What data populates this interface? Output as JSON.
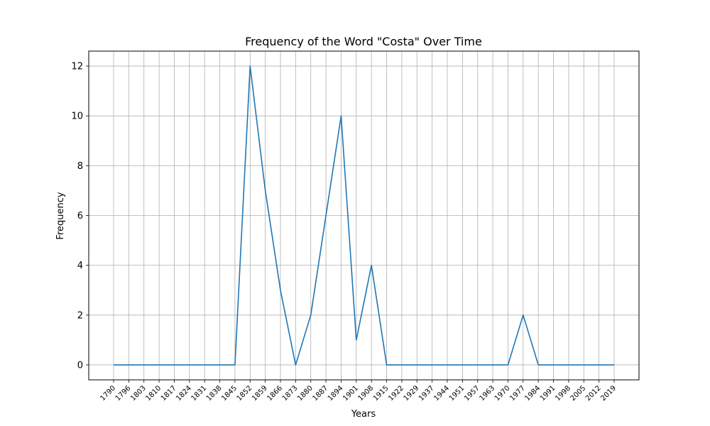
{
  "chart_data": {
    "type": "line",
    "title": "Frequency of the Word \"Costa\" Over Time",
    "xlabel": "Years",
    "ylabel": "Frequency",
    "x": [
      "1790",
      "1796",
      "1803",
      "1810",
      "1817",
      "1824",
      "1831",
      "1838",
      "1845",
      "1852",
      "1859",
      "1866",
      "1873",
      "1880",
      "1887",
      "1894",
      "1901",
      "1908",
      "1915",
      "1922",
      "1929",
      "1937",
      "1944",
      "1951",
      "1957",
      "1963",
      "1970",
      "1977",
      "1984",
      "1991",
      "1998",
      "2005",
      "2012",
      "2019"
    ],
    "series": [
      {
        "color": "#1f77b4",
        "values": [
          0,
          0,
          0,
          0,
          0,
          0,
          0,
          0,
          0,
          12,
          7,
          3,
          0,
          2,
          6,
          10,
          1,
          4,
          0,
          0,
          0,
          0,
          0,
          0,
          0,
          0,
          0,
          2,
          0,
          0,
          0,
          0,
          0,
          0
        ]
      }
    ],
    "yticks": [
      0,
      2,
      4,
      6,
      8,
      10,
      12
    ],
    "ylim": [
      -0.6,
      12.6
    ],
    "grid": true,
    "legend": "none"
  }
}
